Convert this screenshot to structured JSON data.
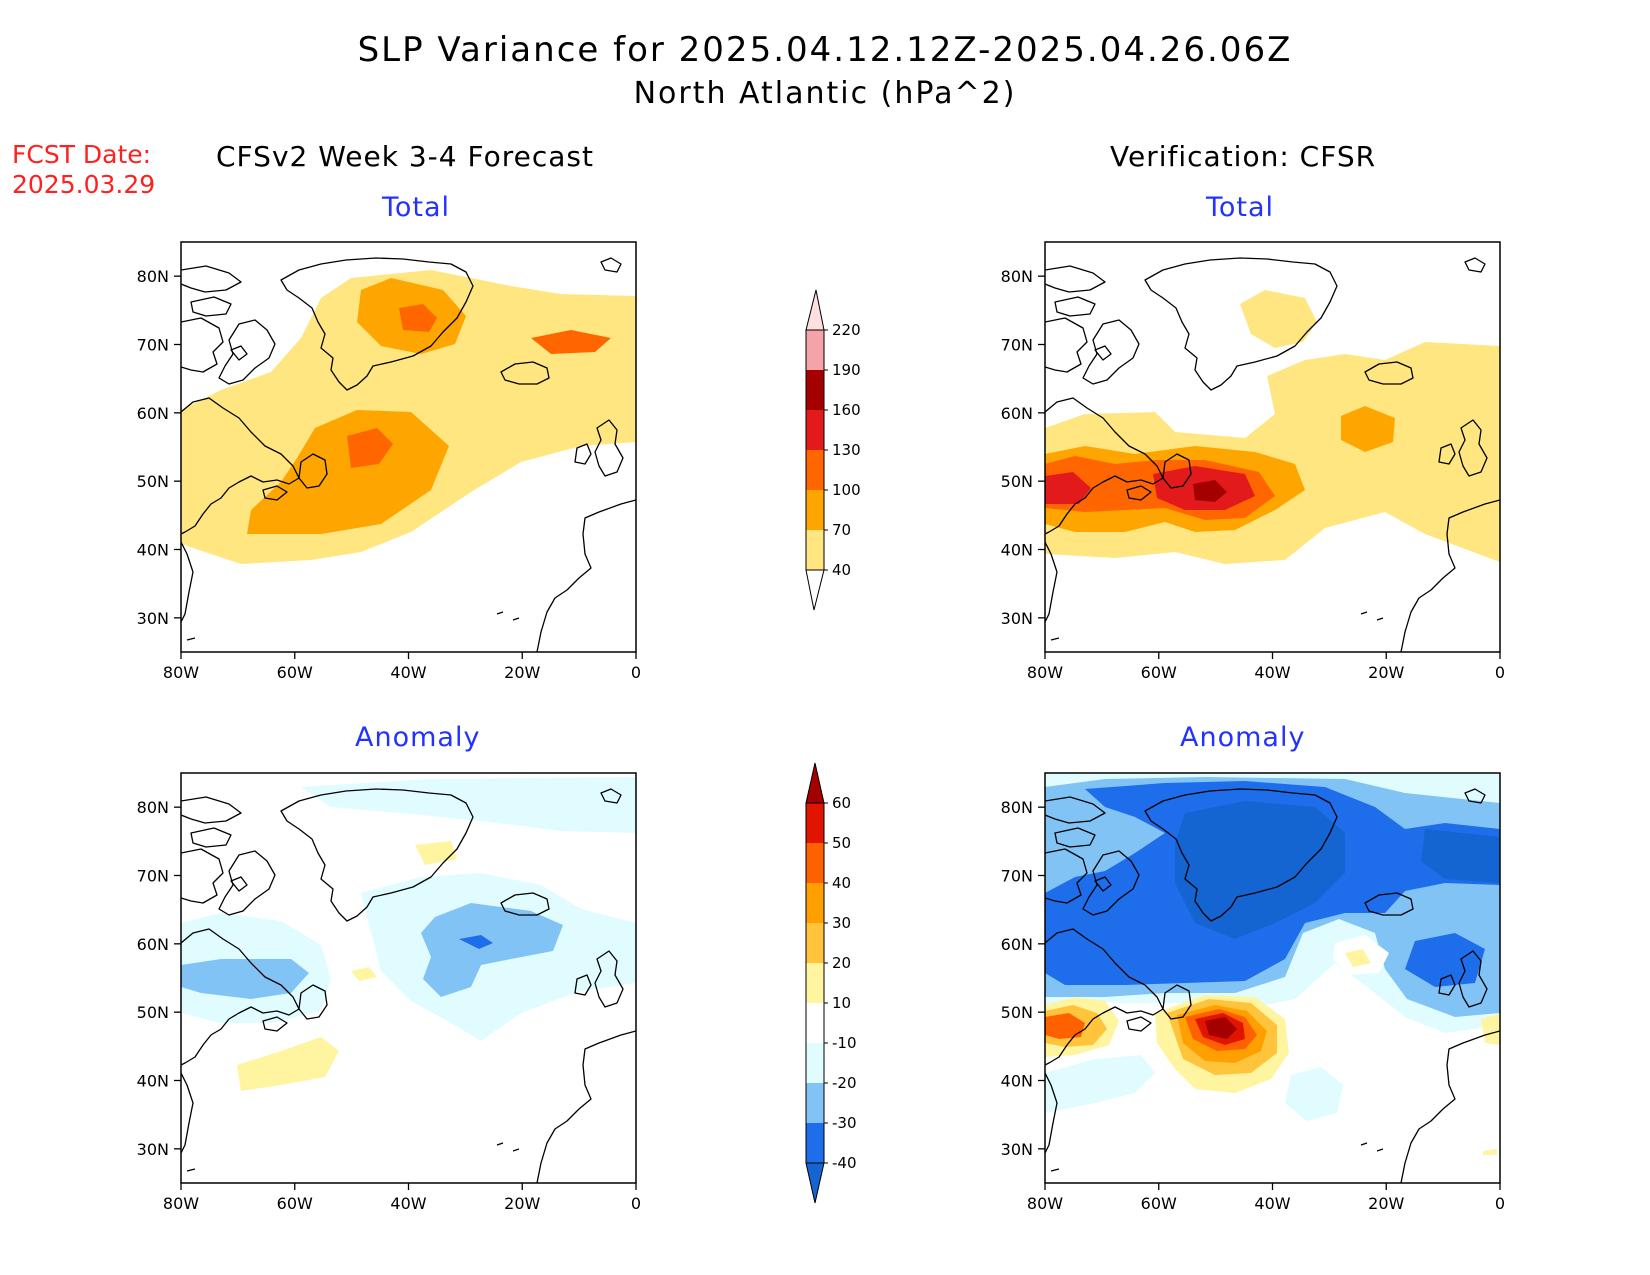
{
  "title_line1": "SLP Variance for 2025.04.12.12Z-2025.04.26.06Z",
  "title_line2": "North Atlantic (hPa^2)",
  "fcst_label": "FCST Date:",
  "fcst_date": "2025.03.29",
  "columns": [
    {
      "title": "CFSv2 Week 3-4 Forecast"
    },
    {
      "title": "Verification: CFSR"
    }
  ],
  "row_labels": [
    "Total",
    "Anomaly"
  ],
  "lat_ticks": [
    "30N",
    "40N",
    "50N",
    "60N",
    "70N",
    "80N"
  ],
  "lon_ticks": [
    "80W",
    "60W",
    "40W",
    "20W",
    "0"
  ],
  "map_extent": {
    "lon_min": -80,
    "lon_max": 0,
    "lat_min": 25,
    "lat_max": 85
  },
  "colorbar_total": {
    "levels": [
      "40",
      "70",
      "100",
      "130",
      "160",
      "190",
      "220"
    ],
    "colors": [
      "#ffe680",
      "#ffa500",
      "#ff6600",
      "#e31a1c",
      "#a50000",
      "#f4a4a8",
      "#fde0e0"
    ]
  },
  "colorbar_anomaly": {
    "levels": [
      "-40",
      "-30",
      "-20",
      "-10",
      "10",
      "20",
      "30",
      "40",
      "50",
      "60"
    ],
    "colors": [
      "#1464d2",
      "#1e6eeb",
      "#82c3f5",
      "#e0fcff",
      "#ffffff",
      "#fff5a0",
      "#ffc43c",
      "#ffa000",
      "#ff6000",
      "#e11400",
      "#a50000"
    ]
  },
  "colors": {
    "title_blue": "#2233ff",
    "fcst_red": "#ff2020"
  }
}
